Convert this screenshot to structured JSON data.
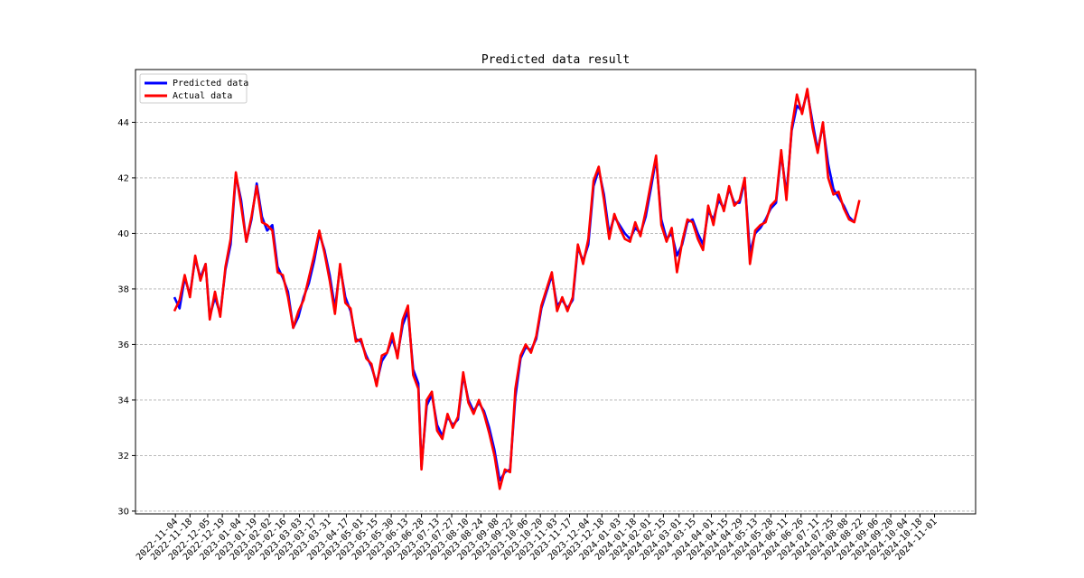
{
  "chart_data": {
    "type": "line",
    "title": "Predicted data result",
    "xlabel": "",
    "ylabel": "",
    "ylim": [
      29.9,
      45.9
    ],
    "yticks": [
      30,
      32,
      34,
      36,
      38,
      40,
      42,
      44
    ],
    "ytick_labels": [
      "30",
      "32",
      "34",
      "36",
      "38",
      "40",
      "42",
      "44"
    ],
    "grid": "horizontal dashed",
    "legend_position": "top-left",
    "x_start": "2022-11-03",
    "x_end": "2024-11-04",
    "xticks": [
      "2022-11-04",
      "2022-11-18",
      "2022-12-05",
      "2022-12-19",
      "2023-01-04",
      "2023-01-19",
      "2023-02-02",
      "2023-02-16",
      "2023-03-03",
      "2023-03-17",
      "2023-03-31",
      "2023-04-17",
      "2023-05-01",
      "2023-05-15",
      "2023-05-30",
      "2023-06-13",
      "2023-06-28",
      "2023-07-13",
      "2023-07-27",
      "2023-08-10",
      "2023-08-24",
      "2023-09-08",
      "2023-09-22",
      "2023-10-06",
      "2023-10-20",
      "2023-11-03",
      "2023-11-17",
      "2023-12-04",
      "2023-12-18",
      "2024-01-03",
      "2024-01-18",
      "2024-02-01",
      "2024-02-15",
      "2024-03-01",
      "2024-03-15",
      "2024-04-01",
      "2024-04-15",
      "2024-04-29",
      "2024-05-13",
      "2024-05-28",
      "2024-06-11",
      "2024-06-26",
      "2024-07-11",
      "2024-07-25",
      "2024-08-08",
      "2024-08-22",
      "2024-09-06",
      "2024-09-20",
      "2024-10-04",
      "2024-10-18",
      "2024-11-01"
    ],
    "series": [
      {
        "name": "Predicted data",
        "color": "#0000ff",
        "points": [
          [
            "2022-11-03",
            37.7
          ],
          [
            "2022-11-08",
            37.3
          ],
          [
            "2022-11-13",
            38.4
          ],
          [
            "2022-11-18",
            37.8
          ],
          [
            "2022-11-23",
            39.1
          ],
          [
            "2022-11-28",
            38.4
          ],
          [
            "2022-12-03",
            38.9
          ],
          [
            "2022-12-07",
            37.0
          ],
          [
            "2022-12-12",
            37.7
          ],
          [
            "2022-12-17",
            37.1
          ],
          [
            "2022-12-22",
            38.7
          ],
          [
            "2022-12-27",
            39.6
          ],
          [
            "2023-01-01",
            42.1
          ],
          [
            "2023-01-06",
            41.2
          ],
          [
            "2023-01-11",
            39.7
          ],
          [
            "2023-01-16",
            40.5
          ],
          [
            "2023-01-21",
            41.8
          ],
          [
            "2023-01-26",
            40.6
          ],
          [
            "2023-01-31",
            40.1
          ],
          [
            "2023-02-05",
            40.3
          ],
          [
            "2023-02-10",
            38.8
          ],
          [
            "2023-02-15",
            38.4
          ],
          [
            "2023-02-20",
            37.9
          ],
          [
            "2023-02-25",
            36.6
          ],
          [
            "2023-03-02",
            37.0
          ],
          [
            "2023-03-07",
            37.7
          ],
          [
            "2023-03-12",
            38.2
          ],
          [
            "2023-03-17",
            39.0
          ],
          [
            "2023-03-22",
            40.0
          ],
          [
            "2023-03-27",
            39.4
          ],
          [
            "2023-04-01",
            38.5
          ],
          [
            "2023-04-06",
            37.3
          ],
          [
            "2023-04-11",
            38.8
          ],
          [
            "2023-04-16",
            37.7
          ],
          [
            "2023-04-21",
            37.2
          ],
          [
            "2023-04-26",
            36.2
          ],
          [
            "2023-05-01",
            36.1
          ],
          [
            "2023-05-06",
            35.6
          ],
          [
            "2023-05-11",
            35.2
          ],
          [
            "2023-05-16",
            34.6
          ],
          [
            "2023-05-21",
            35.4
          ],
          [
            "2023-05-26",
            35.7
          ],
          [
            "2023-05-31",
            36.2
          ],
          [
            "2023-06-05",
            35.6
          ],
          [
            "2023-06-10",
            36.7
          ],
          [
            "2023-06-15",
            37.2
          ],
          [
            "2023-06-20",
            35.1
          ],
          [
            "2023-06-25",
            34.6
          ],
          [
            "2023-06-28",
            31.6
          ],
          [
            "2023-07-03",
            33.8
          ],
          [
            "2023-07-08",
            34.2
          ],
          [
            "2023-07-13",
            33.1
          ],
          [
            "2023-07-18",
            32.7
          ],
          [
            "2023-07-23",
            33.4
          ],
          [
            "2023-07-28",
            33.1
          ],
          [
            "2023-08-02",
            33.3
          ],
          [
            "2023-08-07",
            34.9
          ],
          [
            "2023-08-12",
            34.0
          ],
          [
            "2023-08-17",
            33.6
          ],
          [
            "2023-08-22",
            33.9
          ],
          [
            "2023-08-27",
            33.6
          ],
          [
            "2023-09-01",
            33.0
          ],
          [
            "2023-09-06",
            32.2
          ],
          [
            "2023-09-11",
            31.1
          ],
          [
            "2023-09-16",
            31.4
          ],
          [
            "2023-09-21",
            31.5
          ],
          [
            "2023-09-26",
            34.1
          ],
          [
            "2023-10-01",
            35.5
          ],
          [
            "2023-10-06",
            35.9
          ],
          [
            "2023-10-11",
            35.8
          ],
          [
            "2023-10-16",
            36.2
          ],
          [
            "2023-10-21",
            37.3
          ],
          [
            "2023-10-26",
            37.9
          ],
          [
            "2023-10-31",
            38.5
          ],
          [
            "2023-11-05",
            37.4
          ],
          [
            "2023-11-10",
            37.6
          ],
          [
            "2023-11-15",
            37.3
          ],
          [
            "2023-11-20",
            37.6
          ],
          [
            "2023-11-25",
            39.5
          ],
          [
            "2023-11-30",
            39.0
          ],
          [
            "2023-12-05",
            39.6
          ],
          [
            "2023-12-10",
            41.7
          ],
          [
            "2023-12-15",
            42.3
          ],
          [
            "2023-12-20",
            41.4
          ],
          [
            "2023-12-25",
            40.0
          ],
          [
            "2023-12-30",
            40.6
          ],
          [
            "2024-01-04",
            40.3
          ],
          [
            "2024-01-09",
            40.0
          ],
          [
            "2024-01-14",
            39.8
          ],
          [
            "2024-01-19",
            40.2
          ],
          [
            "2024-01-24",
            40.0
          ],
          [
            "2024-01-29",
            40.6
          ],
          [
            "2024-02-03",
            41.6
          ],
          [
            "2024-02-08",
            42.7
          ],
          [
            "2024-02-13",
            40.5
          ],
          [
            "2024-02-18",
            39.8
          ],
          [
            "2024-02-23",
            40.0
          ],
          [
            "2024-02-28",
            39.2
          ],
          [
            "2024-03-04",
            39.6
          ],
          [
            "2024-03-09",
            40.4
          ],
          [
            "2024-03-14",
            40.5
          ],
          [
            "2024-03-19",
            40.0
          ],
          [
            "2024-03-24",
            39.6
          ],
          [
            "2024-03-29",
            40.8
          ],
          [
            "2024-04-03",
            40.5
          ],
          [
            "2024-04-08",
            41.2
          ],
          [
            "2024-04-13",
            40.9
          ],
          [
            "2024-04-18",
            41.6
          ],
          [
            "2024-04-23",
            41.1
          ],
          [
            "2024-04-28",
            41.1
          ],
          [
            "2024-05-03",
            41.9
          ],
          [
            "2024-05-08",
            39.3
          ],
          [
            "2024-05-13",
            40.0
          ],
          [
            "2024-05-18",
            40.2
          ],
          [
            "2024-05-23",
            40.5
          ],
          [
            "2024-05-28",
            40.9
          ],
          [
            "2024-06-02",
            41.1
          ],
          [
            "2024-06-07",
            42.9
          ],
          [
            "2024-06-12",
            41.4
          ],
          [
            "2024-06-17",
            43.7
          ],
          [
            "2024-06-22",
            44.6
          ],
          [
            "2024-06-27",
            44.4
          ],
          [
            "2024-07-02",
            45.1
          ],
          [
            "2024-07-07",
            44.0
          ],
          [
            "2024-07-12",
            43.0
          ],
          [
            "2024-07-17",
            43.9
          ],
          [
            "2024-07-22",
            42.5
          ],
          [
            "2024-07-27",
            41.6
          ],
          [
            "2024-08-01",
            41.3
          ],
          [
            "2024-08-06",
            41.0
          ],
          [
            "2024-08-11",
            40.6
          ],
          [
            "2024-08-16",
            40.4
          ]
        ]
      },
      {
        "name": "Actual data",
        "color": "#ff0000",
        "points": [
          [
            "2022-11-03",
            37.2
          ],
          [
            "2022-11-08",
            37.6
          ],
          [
            "2022-11-13",
            38.5
          ],
          [
            "2022-11-18",
            37.7
          ],
          [
            "2022-11-23",
            39.2
          ],
          [
            "2022-11-28",
            38.3
          ],
          [
            "2022-12-03",
            38.9
          ],
          [
            "2022-12-07",
            36.9
          ],
          [
            "2022-12-12",
            37.9
          ],
          [
            "2022-12-17",
            37.0
          ],
          [
            "2022-12-22",
            38.8
          ],
          [
            "2022-12-27",
            39.8
          ],
          [
            "2023-01-01",
            42.2
          ],
          [
            "2023-01-06",
            41.0
          ],
          [
            "2023-01-11",
            39.7
          ],
          [
            "2023-01-16",
            40.6
          ],
          [
            "2023-01-21",
            41.7
          ],
          [
            "2023-01-26",
            40.4
          ],
          [
            "2023-01-31",
            40.3
          ],
          [
            "2023-02-05",
            40.1
          ],
          [
            "2023-02-10",
            38.6
          ],
          [
            "2023-02-15",
            38.5
          ],
          [
            "2023-02-20",
            37.7
          ],
          [
            "2023-02-25",
            36.6
          ],
          [
            "2023-03-02",
            37.2
          ],
          [
            "2023-03-07",
            37.6
          ],
          [
            "2023-03-12",
            38.4
          ],
          [
            "2023-03-17",
            39.2
          ],
          [
            "2023-03-22",
            40.1
          ],
          [
            "2023-03-27",
            39.3
          ],
          [
            "2023-04-01",
            38.3
          ],
          [
            "2023-04-06",
            37.1
          ],
          [
            "2023-04-11",
            38.9
          ],
          [
            "2023-04-16",
            37.5
          ],
          [
            "2023-04-21",
            37.3
          ],
          [
            "2023-04-26",
            36.1
          ],
          [
            "2023-05-01",
            36.2
          ],
          [
            "2023-05-06",
            35.5
          ],
          [
            "2023-05-11",
            35.3
          ],
          [
            "2023-05-16",
            34.5
          ],
          [
            "2023-05-21",
            35.6
          ],
          [
            "2023-05-26",
            35.7
          ],
          [
            "2023-05-31",
            36.4
          ],
          [
            "2023-06-05",
            35.5
          ],
          [
            "2023-06-10",
            36.9
          ],
          [
            "2023-06-15",
            37.4
          ],
          [
            "2023-06-20",
            34.9
          ],
          [
            "2023-06-25",
            34.4
          ],
          [
            "2023-06-28",
            31.5
          ],
          [
            "2023-07-03",
            34.0
          ],
          [
            "2023-07-08",
            34.3
          ],
          [
            "2023-07-13",
            32.9
          ],
          [
            "2023-07-18",
            32.6
          ],
          [
            "2023-07-23",
            33.5
          ],
          [
            "2023-07-28",
            33.0
          ],
          [
            "2023-08-02",
            33.4
          ],
          [
            "2023-08-07",
            35.0
          ],
          [
            "2023-08-12",
            33.9
          ],
          [
            "2023-08-17",
            33.5
          ],
          [
            "2023-08-22",
            34.0
          ],
          [
            "2023-08-27",
            33.5
          ],
          [
            "2023-09-01",
            32.8
          ],
          [
            "2023-09-06",
            32.0
          ],
          [
            "2023-09-11",
            30.8
          ],
          [
            "2023-09-16",
            31.5
          ],
          [
            "2023-09-21",
            31.4
          ],
          [
            "2023-09-26",
            34.4
          ],
          [
            "2023-10-01",
            35.6
          ],
          [
            "2023-10-06",
            36.0
          ],
          [
            "2023-10-11",
            35.7
          ],
          [
            "2023-10-16",
            36.3
          ],
          [
            "2023-10-21",
            37.4
          ],
          [
            "2023-10-26",
            38.0
          ],
          [
            "2023-10-31",
            38.6
          ],
          [
            "2023-11-05",
            37.2
          ],
          [
            "2023-11-10",
            37.7
          ],
          [
            "2023-11-15",
            37.2
          ],
          [
            "2023-11-20",
            37.7
          ],
          [
            "2023-11-25",
            39.6
          ],
          [
            "2023-11-30",
            38.9
          ],
          [
            "2023-12-05",
            39.8
          ],
          [
            "2023-12-10",
            41.9
          ],
          [
            "2023-12-15",
            42.4
          ],
          [
            "2023-12-20",
            41.2
          ],
          [
            "2023-12-25",
            39.8
          ],
          [
            "2023-12-30",
            40.7
          ],
          [
            "2024-01-04",
            40.2
          ],
          [
            "2024-01-09",
            39.8
          ],
          [
            "2024-01-14",
            39.7
          ],
          [
            "2024-01-19",
            40.4
          ],
          [
            "2024-01-24",
            39.9
          ],
          [
            "2024-01-29",
            40.8
          ],
          [
            "2024-02-03",
            41.8
          ],
          [
            "2024-02-08",
            42.8
          ],
          [
            "2024-02-13",
            40.3
          ],
          [
            "2024-02-18",
            39.7
          ],
          [
            "2024-02-23",
            40.2
          ],
          [
            "2024-02-28",
            38.6
          ],
          [
            "2024-03-04",
            39.7
          ],
          [
            "2024-03-09",
            40.5
          ],
          [
            "2024-03-14",
            40.4
          ],
          [
            "2024-03-19",
            39.8
          ],
          [
            "2024-03-24",
            39.4
          ],
          [
            "2024-03-29",
            41.0
          ],
          [
            "2024-04-03",
            40.3
          ],
          [
            "2024-04-08",
            41.4
          ],
          [
            "2024-04-13",
            40.8
          ],
          [
            "2024-04-18",
            41.7
          ],
          [
            "2024-04-23",
            41.0
          ],
          [
            "2024-04-28",
            41.2
          ],
          [
            "2024-05-03",
            42.0
          ],
          [
            "2024-05-08",
            38.9
          ],
          [
            "2024-05-13",
            40.1
          ],
          [
            "2024-05-18",
            40.3
          ],
          [
            "2024-05-23",
            40.4
          ],
          [
            "2024-05-28",
            41.0
          ],
          [
            "2024-06-02",
            41.2
          ],
          [
            "2024-06-07",
            43.0
          ],
          [
            "2024-06-12",
            41.2
          ],
          [
            "2024-06-17",
            43.8
          ],
          [
            "2024-06-22",
            45.0
          ],
          [
            "2024-06-27",
            44.3
          ],
          [
            "2024-07-02",
            45.2
          ],
          [
            "2024-07-07",
            43.8
          ],
          [
            "2024-07-12",
            42.9
          ],
          [
            "2024-07-17",
            44.0
          ],
          [
            "2024-07-22",
            42.0
          ],
          [
            "2024-07-27",
            41.4
          ],
          [
            "2024-08-01",
            41.5
          ],
          [
            "2024-08-06",
            40.9
          ],
          [
            "2024-08-11",
            40.5
          ],
          [
            "2024-08-16",
            40.4
          ],
          [
            "2024-08-21",
            41.2
          ]
        ]
      }
    ]
  }
}
